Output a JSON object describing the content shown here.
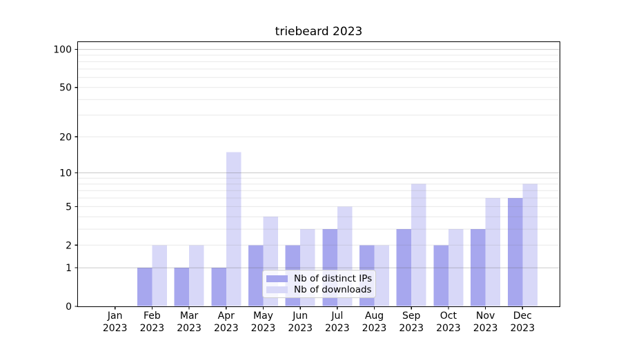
{
  "page": {
    "background": "#ffffff"
  },
  "chart_data": {
    "type": "bar",
    "title": "triebeard 2023",
    "year_label": "2023",
    "categories": [
      "Jan",
      "Feb",
      "Mar",
      "Apr",
      "May",
      "Jun",
      "Jul",
      "Aug",
      "Sep",
      "Oct",
      "Nov",
      "Dec"
    ],
    "series": [
      {
        "name": "Nb of distinct IPs",
        "color": "#a7a7ee",
        "values": [
          0,
          1,
          1,
          1,
          2,
          2,
          3,
          2,
          3,
          2,
          3,
          6
        ]
      },
      {
        "name": "Nb of downloads",
        "color": "#d8d8f8",
        "values": [
          0,
          2,
          2,
          15,
          4,
          3,
          5,
          2,
          8,
          3,
          6,
          8
        ]
      }
    ],
    "y_axis": {
      "scale": "log1p",
      "ticks": [
        0,
        1,
        2,
        5,
        10,
        20,
        50,
        100
      ],
      "major_gridlines": [
        1,
        10,
        100
      ],
      "minor_gridlines": [
        2,
        3,
        4,
        5,
        6,
        7,
        8,
        9,
        20,
        30,
        40,
        50,
        60,
        70,
        80,
        90
      ],
      "top_value": 114
    },
    "x_axis": {
      "tick_label_lines": 2
    },
    "legend": {
      "position": "lower-center",
      "entries": [
        "Nb of distinct IPs",
        "Nb of downloads"
      ]
    },
    "grid": true
  },
  "colors": {
    "major_grid": "#c9c9c9",
    "minor_grid": "#e8e8e8",
    "axis": "#000000",
    "tick_text": "#000000",
    "legend_border": "#cccccc"
  }
}
